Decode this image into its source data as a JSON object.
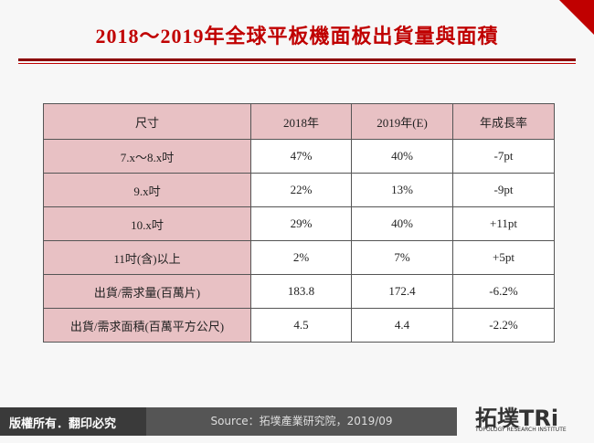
{
  "title": "2018～2019年全球平板機面板出貨量與面積",
  "table": {
    "header": [
      "尺寸",
      "2018年",
      "2019年(E)",
      "年成長率"
    ],
    "rows": [
      [
        "7.x～8.x吋",
        "47%",
        "40%",
        "-7pt"
      ],
      [
        "9.x吋",
        "22%",
        "13%",
        "-9pt"
      ],
      [
        "10.x吋",
        "29%",
        "40%",
        "+11pt"
      ],
      [
        "11吋(含)以上",
        "2%",
        "7%",
        "+5pt"
      ],
      [
        "出貨/需求量(百萬片)",
        "183.8",
        "172.4",
        "-6.2%"
      ],
      [
        "出貨/需求面積(百萬平方公尺)",
        "4.5",
        "4.4",
        "-2.2%"
      ]
    ]
  },
  "footer": {
    "copyright": "版權所有．翻印必究",
    "source": "Source：拓墣產業研究院，2019/09",
    "logo": "拓墣TRi",
    "logo_subtitle": "TOPOLOGY RESEARCH INSTITUTE"
  }
}
